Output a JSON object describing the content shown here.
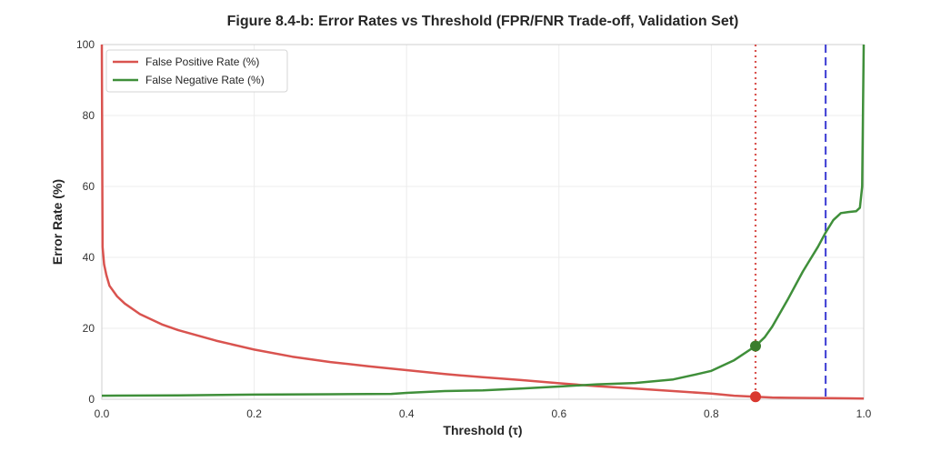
{
  "chart_data": {
    "type": "line",
    "title": "Figure 8.4-b: Error Rates vs Threshold (FPR/FNR Trade-off, Validation Set)",
    "xlabel": "Threshold (τ)",
    "ylabel": "Error Rate (%)",
    "xlim": [
      0.0,
      1.0
    ],
    "ylim": [
      0,
      100
    ],
    "x_ticks": [
      "0.0",
      "0.2",
      "0.4",
      "0.6",
      "0.8",
      "1.0"
    ],
    "y_ticks": [
      "0",
      "20",
      "40",
      "60",
      "80",
      "100"
    ],
    "grid": true,
    "legend_position": "top-left",
    "series": [
      {
        "name": "False Positive Rate (%)",
        "color": "#d9534f",
        "x": [
          0.0,
          0.001,
          0.003,
          0.006,
          0.01,
          0.02,
          0.03,
          0.05,
          0.08,
          0.1,
          0.15,
          0.2,
          0.25,
          0.3,
          0.35,
          0.4,
          0.45,
          0.5,
          0.55,
          0.6,
          0.65,
          0.7,
          0.75,
          0.8,
          0.83,
          0.858,
          0.88,
          0.9,
          0.93,
          0.95,
          0.98,
          1.0
        ],
        "values": [
          100,
          43,
          38,
          35,
          32,
          29,
          27,
          24,
          21,
          19.5,
          16.5,
          14,
          12,
          10.5,
          9.3,
          8.2,
          7.1,
          6.2,
          5.4,
          4.5,
          3.7,
          3.0,
          2.3,
          1.6,
          1.0,
          0.7,
          0.5,
          0.4,
          0.35,
          0.3,
          0.25,
          0.2
        ]
      },
      {
        "name": "False Negative Rate (%)",
        "color": "#3f8f3a",
        "x": [
          0.0,
          0.1,
          0.2,
          0.3,
          0.38,
          0.4,
          0.45,
          0.5,
          0.55,
          0.6,
          0.65,
          0.7,
          0.75,
          0.78,
          0.8,
          0.83,
          0.858,
          0.87,
          0.88,
          0.9,
          0.92,
          0.94,
          0.95,
          0.96,
          0.97,
          0.98,
          0.99,
          0.995,
          0.998,
          1.0
        ],
        "values": [
          1.0,
          1.1,
          1.3,
          1.4,
          1.5,
          1.8,
          2.3,
          2.5,
          3.0,
          3.6,
          4.2,
          4.6,
          5.6,
          7.0,
          8.0,
          11.0,
          15.0,
          17.5,
          20.5,
          28.0,
          36.0,
          43.0,
          47.0,
          50.5,
          52.5,
          52.8,
          53.0,
          54.0,
          60.0,
          100
        ]
      }
    ],
    "reference_lines": [
      {
        "axis": "x",
        "value": 0.858,
        "style": "dotted",
        "color": "#d9534f"
      },
      {
        "axis": "x",
        "value": 0.95,
        "style": "dashed",
        "color": "#4a4ad6"
      }
    ],
    "markers": [
      {
        "x": 0.858,
        "y": 0.7,
        "color": "#d9382f"
      },
      {
        "x": 0.858,
        "y": 15.0,
        "color": "#3a7d2c"
      }
    ]
  }
}
